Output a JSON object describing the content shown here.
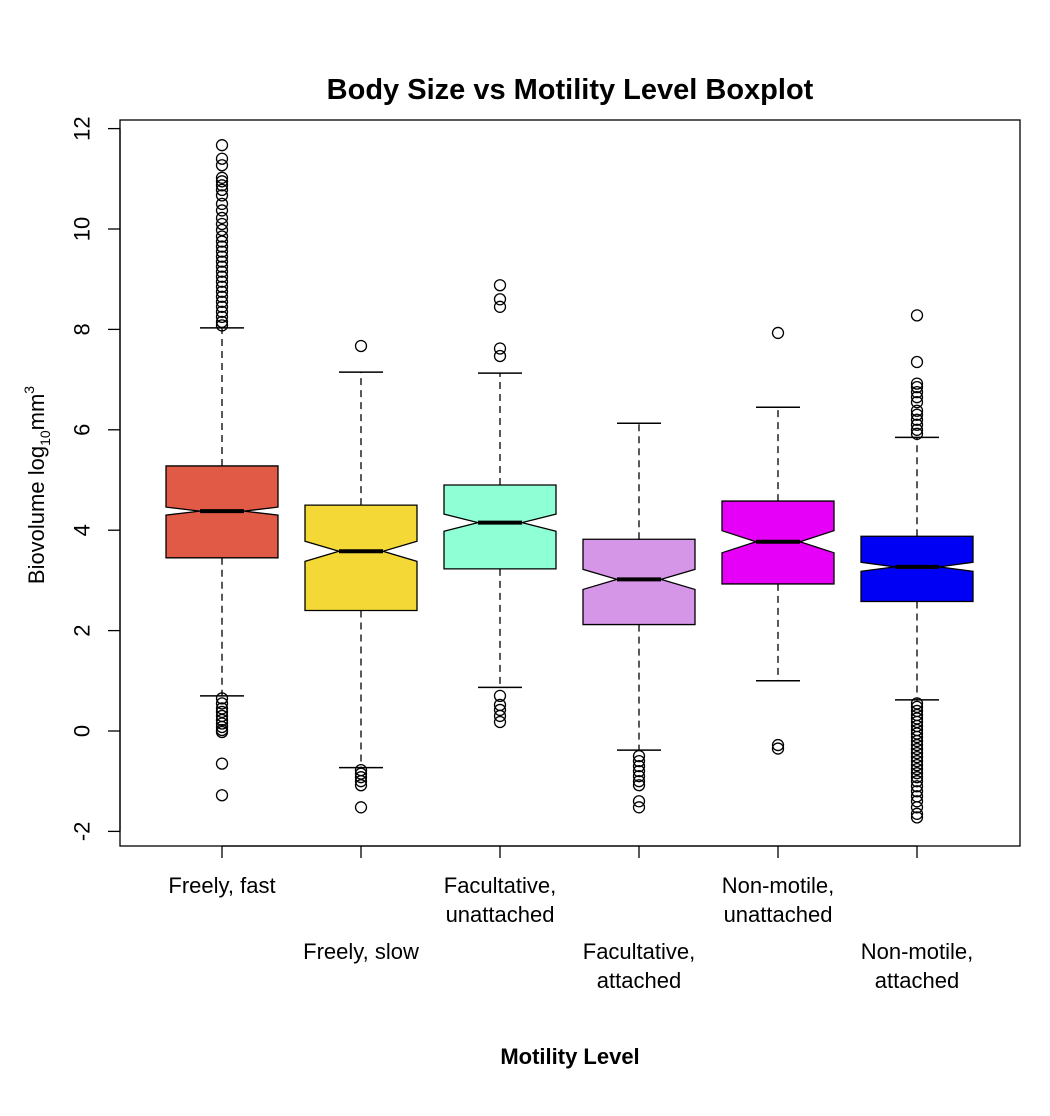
{
  "chart_data": {
    "type": "boxplot",
    "title": "Body Size vs Motility Level Boxplot",
    "xlabel": "Motility Level",
    "ylabel": {
      "main": "Biovolume log",
      "subscript": "10",
      "unit": "mm",
      "superscript": "3"
    },
    "ylim": [
      -2.3,
      12.2
    ],
    "yticks": [
      -2,
      0,
      2,
      4,
      6,
      8,
      10,
      12
    ],
    "notched": true,
    "grid": false,
    "legend": "none",
    "categories": [
      {
        "label": [
          "Freely, fast"
        ],
        "color": "#e05a45",
        "whisker_low": 0.7,
        "q1": 3.45,
        "median": 4.38,
        "q3": 5.28,
        "whisker_high": 8.03,
        "notch_low": 4.3,
        "notch_high": 4.46,
        "outliers": [
          11.67,
          11.4,
          11.27,
          11.02,
          10.95,
          10.87,
          10.78,
          10.67,
          10.5,
          10.37,
          10.22,
          10.1,
          9.98,
          9.85,
          9.75,
          9.65,
          9.55,
          9.45,
          9.35,
          9.25,
          9.15,
          9.05,
          8.95,
          8.85,
          8.75,
          8.65,
          8.55,
          8.45,
          8.35,
          8.25,
          8.15,
          8.08,
          0.65,
          0.55,
          0.45,
          0.38,
          0.3,
          0.22,
          0.15,
          0.08,
          0.02,
          -0.02,
          -0.65,
          -1.28
        ]
      },
      {
        "label": [
          "Freely, slow"
        ],
        "color": "#f4d836",
        "whisker_low": -0.73,
        "q1": 2.4,
        "median": 3.58,
        "q3": 4.5,
        "whisker_high": 7.15,
        "notch_low": 3.38,
        "notch_high": 3.78,
        "outliers": [
          7.67,
          -0.78,
          -0.85,
          -0.92,
          -1.0,
          -1.08,
          -1.52
        ]
      },
      {
        "label": [
          "Facultative,",
          "unattached"
        ],
        "color": "#8fffd6",
        "whisker_low": 0.87,
        "q1": 3.23,
        "median": 4.15,
        "q3": 4.9,
        "whisker_high": 7.13,
        "notch_low": 3.98,
        "notch_high": 4.32,
        "outliers": [
          8.88,
          8.6,
          8.45,
          7.62,
          7.47,
          0.7,
          0.52,
          0.42,
          0.3,
          0.18
        ]
      },
      {
        "label": [
          "Facultative,",
          "attached"
        ],
        "color": "#d696e8",
        "whisker_low": -0.38,
        "q1": 2.12,
        "median": 3.02,
        "q3": 3.82,
        "whisker_high": 6.13,
        "notch_low": 2.82,
        "notch_high": 3.22,
        "outliers": [
          -0.5,
          -0.6,
          -0.7,
          -0.8,
          -0.9,
          -1.0,
          -1.08,
          -1.4,
          -1.52
        ]
      },
      {
        "label": [
          "Non-motile,",
          "unattached"
        ],
        "color": "#e600f7",
        "whisker_low": 1.0,
        "q1": 2.93,
        "median": 3.77,
        "q3": 4.58,
        "whisker_high": 6.45,
        "notch_low": 3.55,
        "notch_high": 3.99,
        "outliers": [
          7.93,
          -0.28,
          -0.35
        ]
      },
      {
        "label": [
          "Non-motile,",
          "attached"
        ],
        "color": "#0000f5",
        "whisker_low": 0.62,
        "q1": 2.58,
        "median": 3.27,
        "q3": 3.88,
        "whisker_high": 5.85,
        "notch_low": 3.18,
        "notch_high": 3.36,
        "outliers": [
          8.28,
          7.35,
          6.92,
          6.85,
          6.75,
          6.65,
          6.55,
          6.38,
          6.3,
          6.2,
          6.1,
          6.0,
          5.92,
          0.55,
          0.48,
          0.4,
          0.32,
          0.25,
          0.18,
          0.1,
          0.02,
          -0.05,
          -0.12,
          -0.2,
          -0.28,
          -0.36,
          -0.44,
          -0.52,
          -0.6,
          -0.68,
          -0.76,
          -0.84,
          -0.92,
          -1.0,
          -1.1,
          -1.2,
          -1.3,
          -1.4,
          -1.52,
          -1.65,
          -1.72
        ]
      }
    ]
  }
}
